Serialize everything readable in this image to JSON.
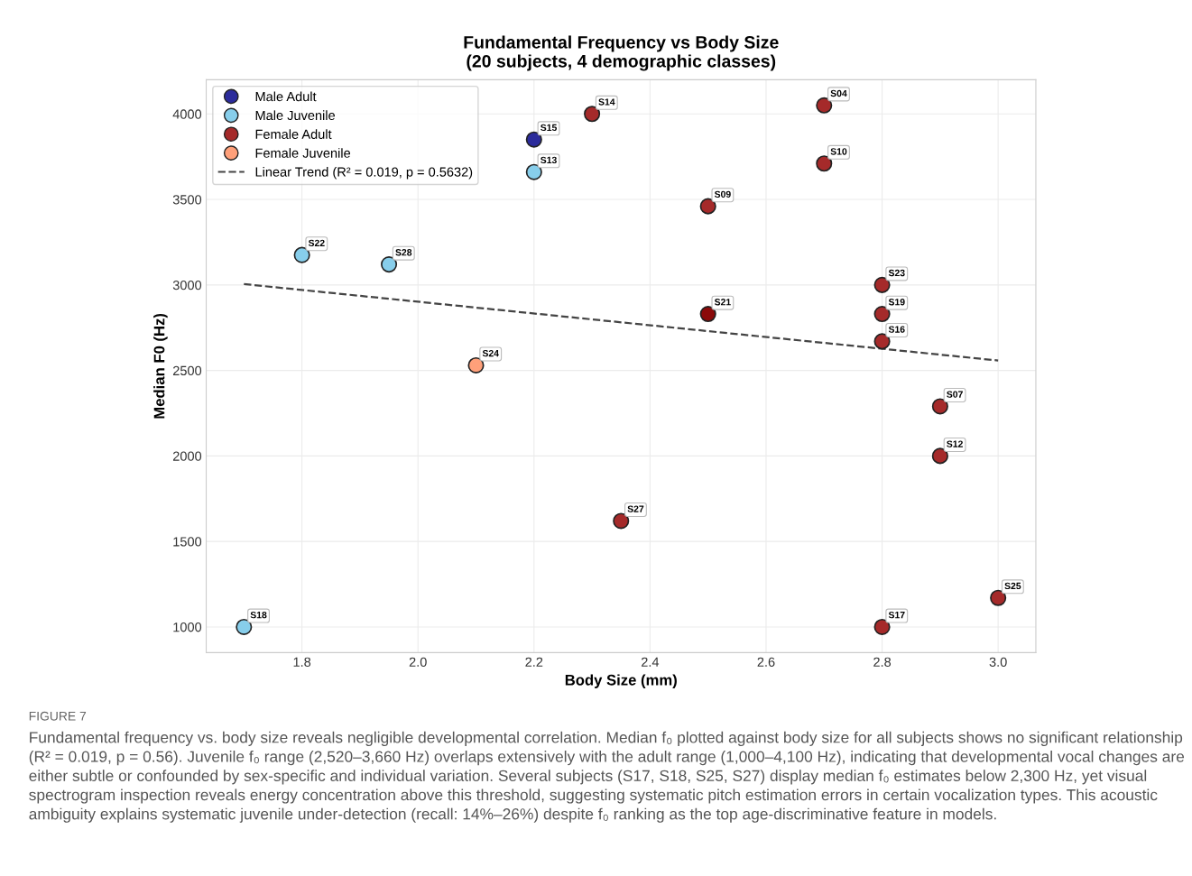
{
  "chart_data": {
    "type": "scatter",
    "title": "Fundamental Frequency vs Body Size\n(20 subjects, 4 demographic classes)",
    "xlabel": "Body Size (mm)",
    "ylabel": "Median F0 (Hz)",
    "xlim": [
      1.635,
      3.065
    ],
    "xticks": [
      {
        "value": 1.8,
        "label": "1.8"
      },
      {
        "value": 2.0,
        "label": "2.0"
      },
      {
        "value": 2.2,
        "label": "2.2"
      },
      {
        "value": 2.4,
        "label": "2.4"
      },
      {
        "value": 2.6,
        "label": "2.6"
      },
      {
        "value": 2.8,
        "label": "2.8"
      },
      {
        "value": 3.0,
        "label": "3.0"
      }
    ],
    "ylim": [
      850,
      4200
    ],
    "yticks": [
      1000,
      1500,
      2000,
      2500,
      3000,
      3500,
      4000
    ],
    "grid": true,
    "legend": "top left",
    "marker": "circle",
    "series": [
      {
        "name": "Male Adult",
        "color": "#2b2b9b",
        "x": [
          2.2
        ],
        "values": [
          3850
        ]
      },
      {
        "name": "Male Juvenile",
        "color": "#87ceeb",
        "x": [
          1.7,
          1.8,
          1.95,
          2.2
        ],
        "values": [
          1000,
          3175,
          3120,
          3660
        ]
      },
      {
        "name": "Female Adult",
        "color": "#a52a2a",
        "colors": [
          "#a52a2a",
          "#a52a2a",
          "#a52a2a",
          "#8b0a0a",
          "#a52a2a",
          "#a52a2a",
          "#a52a2a",
          "#a52a2a",
          "#a52a2a",
          "#a52a2a",
          "#a52a2a",
          "#a52a2a",
          "#a52a2a"
        ],
        "x": [
          2.3,
          2.35,
          2.5,
          2.5,
          2.7,
          2.7,
          2.8,
          2.8,
          2.8,
          2.9,
          2.9,
          2.8,
          3.0
        ],
        "values": [
          4000,
          1620,
          3460,
          2830,
          4050,
          3710,
          3000,
          2830,
          2670,
          2290,
          2000,
          1000,
          1170
        ]
      },
      {
        "name": "Female Juvenile",
        "color": "#ffa07a",
        "x": [
          2.1
        ],
        "values": [
          2530
        ]
      },
      {
        "name": "Linear Trend (R² = 0.019, p = 0.5632)",
        "type": "line",
        "line_style": "dashed",
        "marker": "none",
        "color": "#444444",
        "x": [
          1.7,
          3.0
        ],
        "values": [
          3005,
          2558
        ]
      }
    ],
    "annotations": [
      {
        "text": "S15",
        "x": 2.2,
        "y": 3850
      },
      {
        "text": "S13",
        "x": 2.2,
        "y": 3660
      },
      {
        "text": "S22",
        "x": 1.8,
        "y": 3175
      },
      {
        "text": "S28",
        "x": 1.95,
        "y": 3120
      },
      {
        "text": "S18",
        "x": 1.7,
        "y": 1000
      },
      {
        "text": "S14",
        "x": 2.3,
        "y": 4000
      },
      {
        "text": "S27",
        "x": 2.35,
        "y": 1620
      },
      {
        "text": "S09",
        "x": 2.5,
        "y": 3460
      },
      {
        "text": "S21",
        "x": 2.5,
        "y": 2830
      },
      {
        "text": "S04",
        "x": 2.7,
        "y": 4050
      },
      {
        "text": "S10",
        "x": 2.7,
        "y": 3710
      },
      {
        "text": "S23",
        "x": 2.8,
        "y": 3000
      },
      {
        "text": "S19",
        "x": 2.8,
        "y": 2830
      },
      {
        "text": "S16",
        "x": 2.8,
        "y": 2670
      },
      {
        "text": "S07",
        "x": 2.9,
        "y": 2290
      },
      {
        "text": "S12",
        "x": 2.9,
        "y": 2000
      },
      {
        "text": "S17",
        "x": 2.8,
        "y": 1000
      },
      {
        "text": "S25",
        "x": 3.0,
        "y": 1170
      },
      {
        "text": "S24",
        "x": 2.1,
        "y": 2530
      },
      "FIGURE 7",
      "Fundamental frequency vs. body size reveals negligible developmental correlation. Median f₀ plotted against body size for all subjects shows no significant relationship (R² = 0.019, p = 0.56). Juvenile f₀ range (2,520–3,660 Hz) overlaps extensively with the adult range (1,000–4,100 Hz), indicating that developmental vocal changes are either subtle or confounded by sex-specific and individual variation. Several subjects (S17, S18, S25, S27) display median f₀ estimates below 2,300 Hz, yet visual spectrogram inspection reveals energy concentration above this threshold, suggesting systematic pitch estimation errors in certain vocalization types. This acoustic ambiguity explains systematic juvenile under-detection (recall: 14%–26%) despite f₀ ranking as the top age-discriminative feature in models."
    ]
  }
}
